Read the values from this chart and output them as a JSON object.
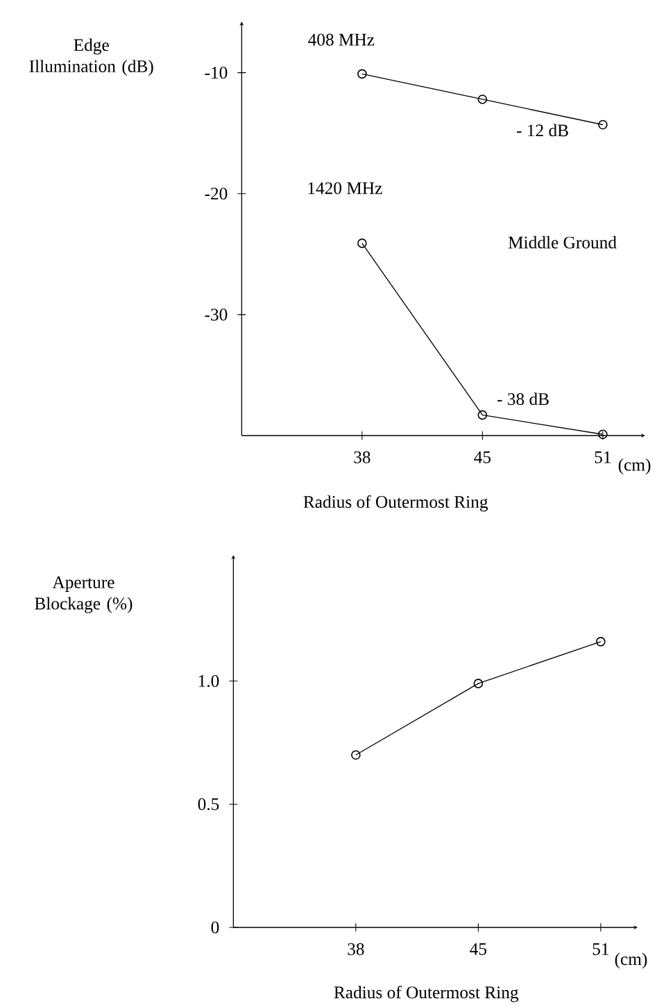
{
  "chart_data": [
    {
      "type": "line",
      "categories": [
        "38",
        "45",
        "51"
      ],
      "series": [
        {
          "name": "408 MHz",
          "color": "#000000",
          "values": [
            -10.1,
            -12.2,
            -14.3
          ]
        },
        {
          "name": "1420 MHz",
          "color": "#000000",
          "values": [
            -24.1,
            -38.3,
            -39.9
          ]
        }
      ],
      "xlabel": "Radius of Outermost Ring",
      "ylabel": "Edge Illumination (dB)",
      "ylim": [
        -40,
        -6
      ],
      "yticks": [
        -30,
        -20,
        -10
      ],
      "annotations": [
        {
          "text": "- 12 dB",
          "x": "45",
          "y": -12
        },
        {
          "text": "- 38 dB",
          "x": "45",
          "y": -38
        },
        "Middle Ground",
        "(cm)"
      ],
      "marker": "circle",
      "line_style": "solid"
    },
    {
      "type": "line",
      "categories": [
        "38",
        "45",
        "51"
      ],
      "series": [
        {
          "color": "#000000",
          "values": [
            0.7,
            0.99,
            1.16
          ]
        }
      ],
      "xlabel": "Radius of Outermost Ring",
      "ylabel": "Aperture Blockage (%)",
      "ylim": [
        0,
        1.5
      ],
      "yticks": [
        0,
        0.5,
        {
          "value": 1,
          "label": "1.0"
        }
      ],
      "annotations": [
        "(cm)"
      ],
      "marker": "circle",
      "line_style": "solid"
    }
  ]
}
